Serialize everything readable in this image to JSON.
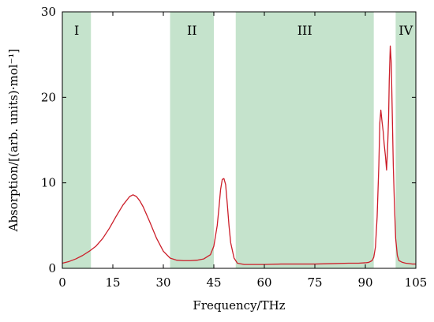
{
  "chart_data": {
    "type": "line",
    "title": "",
    "xlabel": "Frequency/THz",
    "ylabel": "Absorption/[(arb. units)·mol⁻¹]",
    "xlim": [
      0,
      105
    ],
    "ylim": [
      0,
      30
    ],
    "xticks": [
      0,
      15,
      30,
      45,
      60,
      75,
      90,
      105
    ],
    "yticks": [
      0,
      10,
      20,
      30
    ],
    "grid": false,
    "legend": "none",
    "colors": {
      "line": "#cc1f2a",
      "region": "#c5e3cc"
    },
    "regions": [
      {
        "label": "I",
        "x_start": 0,
        "x_end": 8.5
      },
      {
        "label": "II",
        "x_start": 32,
        "x_end": 45
      },
      {
        "label": "III",
        "x_start": 51.5,
        "x_end": 92.5
      },
      {
        "label": "IV",
        "x_start": 99,
        "x_end": 105
      }
    ],
    "series": [
      {
        "x": [
          0,
          2,
          4,
          6,
          8,
          10,
          12,
          14,
          16,
          18,
          20,
          21,
          22,
          23,
          24,
          26,
          28,
          30,
          32,
          34,
          36,
          38,
          40,
          42,
          44,
          45,
          46,
          46.5,
          47,
          47.5,
          48,
          48.5,
          49,
          49.5,
          50,
          51,
          52,
          54,
          56,
          60,
          65,
          70,
          75,
          80,
          85,
          88,
          90,
          91,
          92,
          92.5,
          93,
          93.5,
          94,
          94.3,
          94.6,
          95,
          95.3,
          95.6,
          96,
          96.3,
          96.6,
          96.9,
          97.1,
          97.4,
          97.7,
          98,
          98.3,
          98.6,
          99,
          99.5,
          100,
          101,
          102,
          103,
          104,
          105
        ],
        "values": [
          0.6,
          0.8,
          1.1,
          1.5,
          2.0,
          2.6,
          3.5,
          4.7,
          6.1,
          7.4,
          8.4,
          8.6,
          8.4,
          7.9,
          7.2,
          5.4,
          3.5,
          2.0,
          1.2,
          0.95,
          0.9,
          0.9,
          0.95,
          1.1,
          1.6,
          2.6,
          5.0,
          7.0,
          9.2,
          10.4,
          10.5,
          9.8,
          7.5,
          5.0,
          3.0,
          1.2,
          0.6,
          0.45,
          0.45,
          0.45,
          0.5,
          0.5,
          0.5,
          0.55,
          0.6,
          0.6,
          0.65,
          0.7,
          0.9,
          1.3,
          2.5,
          6.0,
          12.0,
          17.0,
          18.5,
          17.0,
          16.0,
          14.5,
          13.0,
          11.5,
          14.0,
          17.5,
          22.0,
          26.0,
          24.0,
          18.0,
          12.0,
          8.0,
          3.5,
          1.5,
          0.9,
          0.7,
          0.6,
          0.55,
          0.5,
          0.5
        ]
      }
    ]
  }
}
